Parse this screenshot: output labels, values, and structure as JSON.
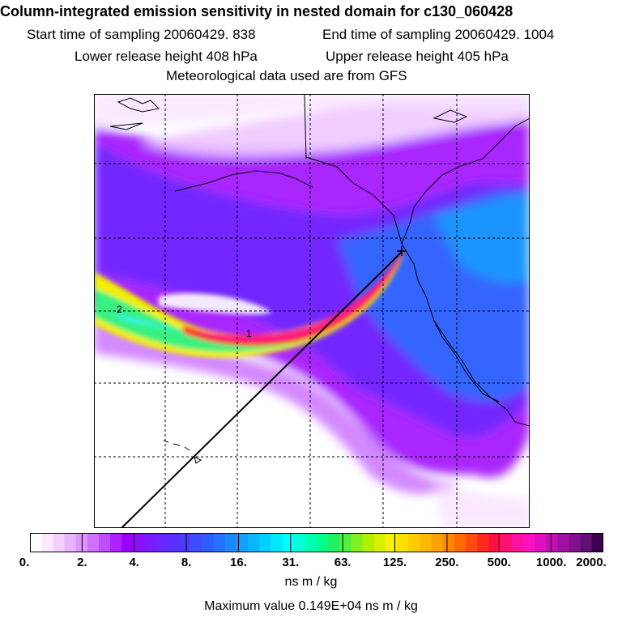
{
  "header": {
    "title": "Column-integrated emission sensitivity in nested domain for c130_060428",
    "start_time": "Start time of sampling 20060429.   838",
    "end_time": "End time of sampling 20060429.  1004",
    "lower_release": "Lower release height  408 hPa",
    "upper_release": "Upper release height  405 hPa",
    "met_data": "Meteorological data used are from GFS"
  },
  "map": {
    "contour_labels": [
      "2",
      "1"
    ],
    "colors": {
      "background": "#ffffff",
      "light_violet": "#f0c8ff",
      "violet": "#c86bff",
      "purple": "#9b00ff",
      "deep_purple": "#7a1cff",
      "blue": "#2f6dff",
      "light_blue": "#1aa0ff",
      "cyan": "#33f2ff",
      "green": "#38f080",
      "yellow": "#f2f000",
      "orange": "#ffb000",
      "red": "#ff1a2a",
      "magenta": "#ff1a88"
    }
  },
  "colorbar": {
    "labels": [
      "0.",
      "2.",
      "4.",
      "8.",
      "16.",
      "31.",
      "63.",
      "125.",
      "250.",
      "500.",
      "1000.",
      "2000."
    ],
    "colors": [
      "#ffffff",
      "#fde8ff",
      "#f5d0ff",
      "#e9b4ff",
      "#dd94ff",
      "#cf70ff",
      "#bf4cff",
      "#ad22ff",
      "#9a00ff",
      "#8a10ff",
      "#7a1cff",
      "#6a28ff",
      "#5a30ff",
      "#4a3cff",
      "#3d4cff",
      "#2f5eff",
      "#2472ff",
      "#1a88ff",
      "#10a0ff",
      "#08b8ff",
      "#00d0ff",
      "#00e8ff",
      "#00ffff",
      "#00ffd8",
      "#00ffb0",
      "#00ff88",
      "#20f060",
      "#50f040",
      "#80f020",
      "#b0f000",
      "#d8f000",
      "#f8f000",
      "#ffe000",
      "#ffcc00",
      "#ffb800",
      "#ffa000",
      "#ff8800",
      "#ff6a00",
      "#ff4a10",
      "#ff2a20",
      "#ff1040",
      "#ff1070",
      "#ff10a0",
      "#ff10c0",
      "#e010c0",
      "#c010b0",
      "#a010a0",
      "#801090",
      "#601070",
      "#400050"
    ],
    "units": "ns m / kg",
    "max_value": "Maximum value  0.149E+04 ns m / kg"
  }
}
